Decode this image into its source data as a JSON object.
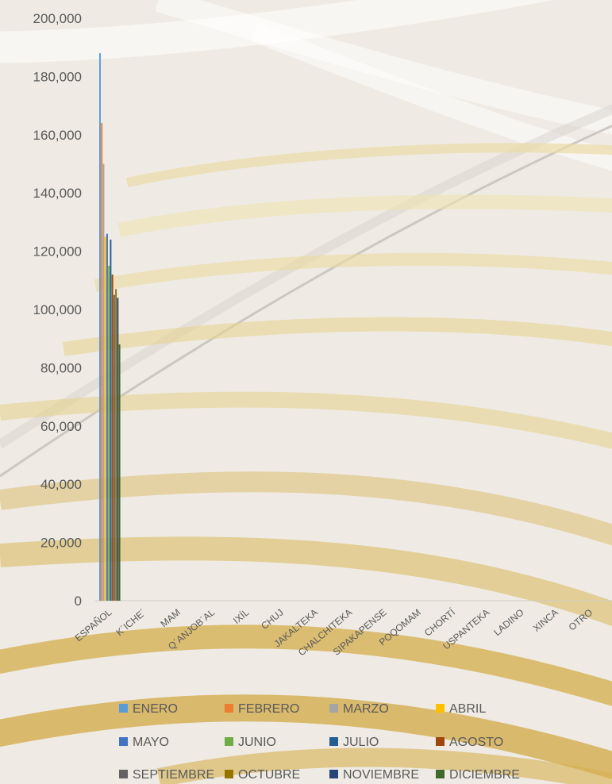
{
  "chart_data": {
    "type": "bar",
    "title": "",
    "xlabel": "",
    "ylabel": "",
    "ylim": [
      0,
      200000
    ],
    "y_ticks": [
      "0",
      "20,000",
      "40,000",
      "60,000",
      "80,000",
      "100,000",
      "120,000",
      "140,000",
      "160,000",
      "180,000",
      "200,000"
    ],
    "y_tick_values": [
      0,
      20000,
      40000,
      60000,
      80000,
      100000,
      120000,
      140000,
      160000,
      180000,
      200000
    ],
    "grid": false,
    "legend_position": "bottom",
    "categories": [
      "ESPAÑOL",
      "K´ICHE´",
      "MAM",
      "Q´ANJOB´AL",
      "IXÍL",
      "CHUJ",
      "JAKALTEKA",
      "CHALCHITEKA",
      "SIPAKAPENSE",
      "POQOMAM",
      "CHORTÍ",
      "USPANTEKA",
      "LADINO",
      "XINCA",
      "OTRO"
    ],
    "series": [
      {
        "name": "ENERO",
        "color": "#5b9bd5",
        "values": [
          188000,
          0,
          0,
          0,
          0,
          0,
          0,
          0,
          0,
          0,
          0,
          0,
          0,
          0,
          0
        ]
      },
      {
        "name": "FEBRERO",
        "color": "#ed7d31",
        "values": [
          164000,
          0,
          0,
          0,
          0,
          0,
          0,
          0,
          0,
          0,
          0,
          0,
          0,
          0,
          0
        ]
      },
      {
        "name": "MARZO",
        "color": "#a5a5a5",
        "values": [
          150000,
          0,
          0,
          0,
          0,
          0,
          0,
          0,
          0,
          0,
          0,
          0,
          0,
          0,
          0
        ]
      },
      {
        "name": "ABRIL",
        "color": "#ffc000",
        "values": [
          125000,
          0,
          0,
          0,
          0,
          0,
          0,
          0,
          0,
          0,
          0,
          0,
          0,
          0,
          0
        ]
      },
      {
        "name": "MAYO",
        "color": "#4472c4",
        "values": [
          126000,
          0,
          0,
          0,
          0,
          0,
          0,
          0,
          0,
          0,
          0,
          0,
          0,
          0,
          0
        ]
      },
      {
        "name": "JUNIO",
        "color": "#70ad47",
        "values": [
          115000,
          0,
          0,
          0,
          0,
          0,
          0,
          0,
          0,
          0,
          0,
          0,
          0,
          0,
          0
        ]
      },
      {
        "name": "JULIO",
        "color": "#255e91",
        "values": [
          124000,
          0,
          0,
          0,
          0,
          0,
          0,
          0,
          0,
          0,
          0,
          0,
          0,
          0,
          0
        ]
      },
      {
        "name": "AGOSTO",
        "color": "#9e480e",
        "values": [
          112000,
          0,
          0,
          0,
          0,
          0,
          0,
          0,
          0,
          0,
          0,
          0,
          0,
          0,
          0
        ]
      },
      {
        "name": "SEPTIEMBRE",
        "color": "#636363",
        "values": [
          105000,
          0,
          0,
          0,
          0,
          0,
          0,
          0,
          0,
          0,
          0,
          0,
          0,
          0,
          0
        ]
      },
      {
        "name": "OCTUBRE",
        "color": "#997300",
        "values": [
          107000,
          0,
          0,
          0,
          0,
          0,
          0,
          0,
          0,
          0,
          0,
          0,
          0,
          0,
          0
        ]
      },
      {
        "name": "NOVIEMBRE",
        "color": "#264478",
        "values": [
          104000,
          0,
          0,
          0,
          0,
          0,
          0,
          0,
          0,
          0,
          0,
          0,
          0,
          0,
          0
        ]
      },
      {
        "name": "DICIEMBRE",
        "color": "#43682b",
        "values": [
          88000,
          0,
          0,
          0,
          0,
          0,
          0,
          0,
          0,
          0,
          0,
          0,
          0,
          0,
          0
        ]
      }
    ]
  }
}
